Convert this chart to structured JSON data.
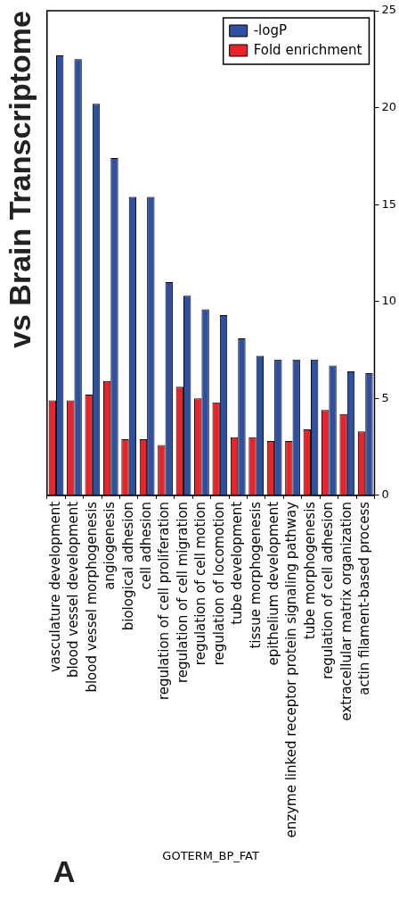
{
  "chart_data": {
    "type": "bar",
    "title": "vs Brain Transcriptome",
    "xlabel": "GOTERM_BP_FAT",
    "annotations": [
      "A"
    ],
    "categories": [
      "vasculature development",
      "blood vessel development",
      "blood vessel morphogenesis",
      "angiogenesis",
      "biological adhesion",
      "cell adhesion",
      "regulation of cell proliferation",
      "regulation of cell migration",
      "regulation of cell motion",
      "regulation of locomotion",
      "tube development",
      "tissue morphogenesis",
      "epithelium development",
      "enzyme linked receptor protein signaling pathway",
      "tube morphogenesis",
      "regulation of cell adhesion",
      "extracellular matrix organization",
      "actin filament-based process"
    ],
    "series": [
      {
        "name": "-logP",
        "color": "#2f4fa0",
        "values": [
          22.7,
          22.5,
          20.2,
          17.4,
          15.4,
          15.4,
          11.0,
          10.3,
          9.6,
          9.3,
          8.1,
          7.2,
          7.0,
          7.0,
          7.0,
          6.7,
          6.4,
          6.3
        ]
      },
      {
        "name": "Fold enrichment",
        "color": "#e8232a",
        "values": [
          4.9,
          4.9,
          5.2,
          5.9,
          2.9,
          2.9,
          2.6,
          5.6,
          5.0,
          4.8,
          3.0,
          3.0,
          2.8,
          2.8,
          3.4,
          4.4,
          4.2,
          3.3
        ]
      }
    ],
    "ylim": [
      0,
      25
    ],
    "yticks": [
      0,
      5,
      10,
      15,
      20,
      25
    ],
    "grid": false,
    "legend": "top right"
  }
}
